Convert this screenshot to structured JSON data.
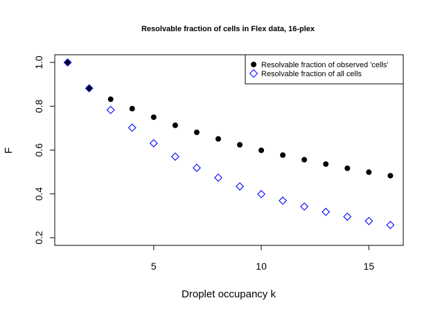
{
  "chart_data": {
    "type": "scatter",
    "title": "Resolvable fraction of cells in Flex data, 16-plex",
    "xlabel": "Droplet occupancy k",
    "ylabel": "F",
    "xlim": [
      0.4,
      16.6
    ],
    "ylim": [
      0.165,
      1.035
    ],
    "x_ticks": [
      5,
      10,
      15
    ],
    "y_ticks": [
      0.2,
      0.4,
      0.6,
      0.8,
      1.0
    ],
    "y_tick_labels": [
      "0.2",
      "0.4",
      "0.6",
      "0.8",
      "1.0"
    ],
    "grid": false,
    "legend_position": "top-right",
    "series": [
      {
        "name": "Resolvable fraction of observed 'cells'",
        "marker": "filled-circle",
        "color": "#000000",
        "x": [
          1,
          2,
          3,
          4,
          5,
          6,
          7,
          8,
          9,
          10,
          11,
          12,
          13,
          14,
          15,
          16
        ],
        "y": [
          1.0,
          0.882,
          0.832,
          0.789,
          0.75,
          0.713,
          0.681,
          0.651,
          0.624,
          0.599,
          0.577,
          0.556,
          0.536,
          0.517,
          0.499,
          0.483
        ]
      },
      {
        "name": "Resolvable fraction of all cells",
        "marker": "open-diamond",
        "color": "#0000ff",
        "x": [
          1,
          2,
          3,
          4,
          5,
          6,
          7,
          8,
          9,
          10,
          11,
          12,
          13,
          14,
          15,
          16
        ],
        "y": [
          1.0,
          0.882,
          0.783,
          0.702,
          0.631,
          0.57,
          0.519,
          0.474,
          0.434,
          0.399,
          0.369,
          0.342,
          0.318,
          0.296,
          0.276,
          0.258
        ]
      }
    ]
  }
}
